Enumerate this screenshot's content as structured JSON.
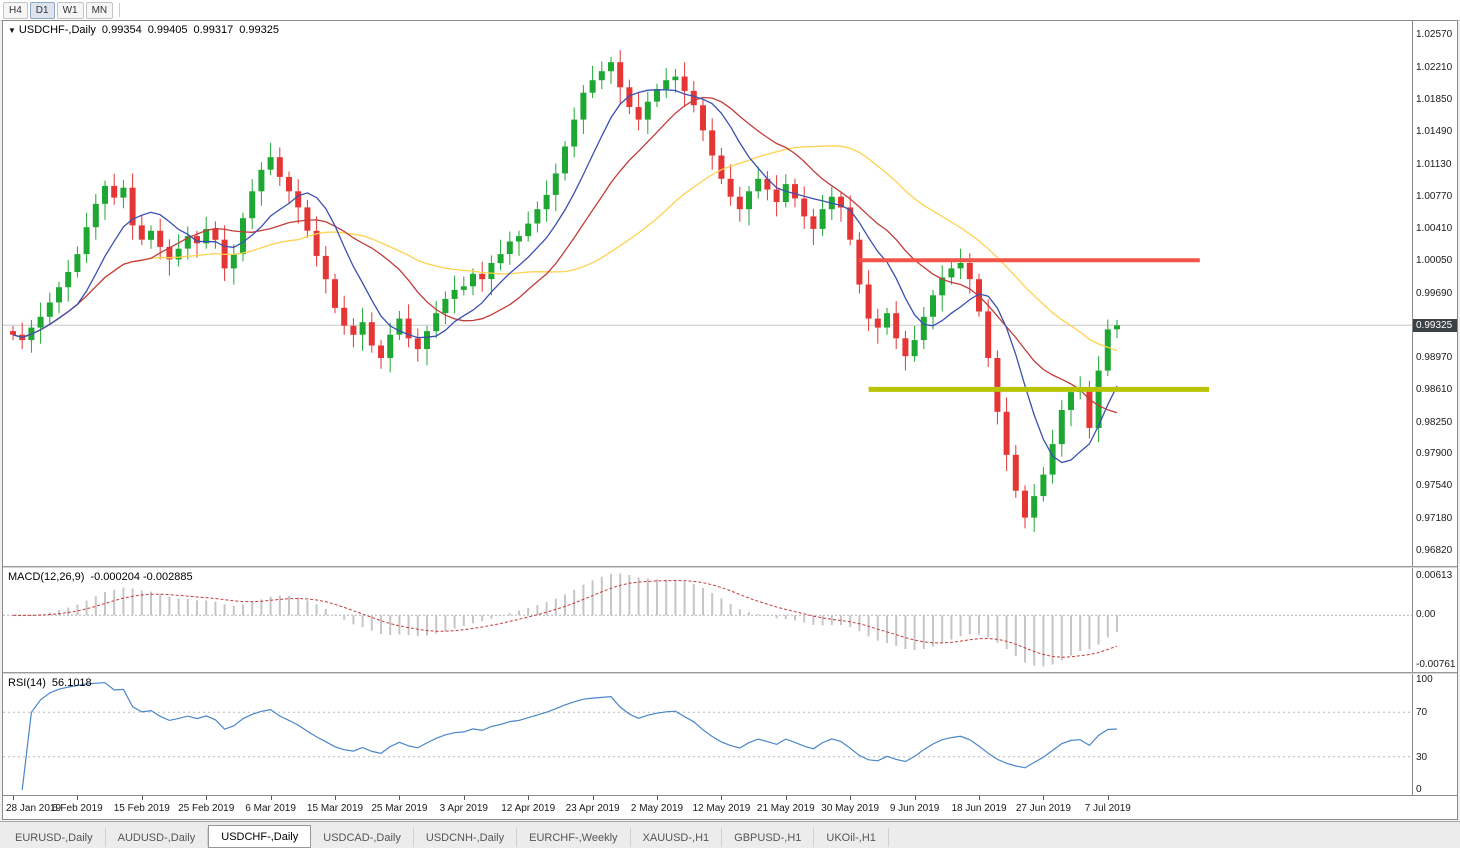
{
  "toolbar": {
    "timeframes": [
      {
        "label": "H4",
        "active": false
      },
      {
        "label": "D1",
        "active": true
      },
      {
        "label": "W1",
        "active": false
      },
      {
        "label": "MN",
        "active": false
      }
    ]
  },
  "header": {
    "arrow": "▼",
    "symbol": "USDCHF-,Daily",
    "open": "0.99354",
    "high": "0.99405",
    "low": "0.99317",
    "close": "0.99325"
  },
  "price_axis": {
    "ticks": [
      "1.02570",
      "1.02210",
      "1.01850",
      "1.01490",
      "1.01130",
      "1.00770",
      "1.00410",
      "1.00050",
      "0.99690",
      "0.98970",
      "0.98610",
      "0.98250",
      "0.97900",
      "0.97540",
      "0.97180",
      "0.96820"
    ],
    "current": "0.99325"
  },
  "macd_panel": {
    "label": "MACD(12,26,9)",
    "values": "-0.000204 -0.002885",
    "axis_top": "0.00613",
    "axis_zero": "0.00",
    "axis_bottom": "-0.00761"
  },
  "rsi_panel": {
    "label": "RSI(14)",
    "value": "56.1018",
    "axis": [
      "100",
      "70",
      "30",
      "0"
    ]
  },
  "tabs": [
    {
      "label": "EURUSD-,Daily",
      "active": false
    },
    {
      "label": "AUDUSD-,Daily",
      "active": false
    },
    {
      "label": "USDCHF-,Daily",
      "active": true
    },
    {
      "label": "USDCAD-,Daily",
      "active": false
    },
    {
      "label": "USDCNH-,Daily",
      "active": false
    },
    {
      "label": "EURCHF-,Weekly",
      "active": false
    },
    {
      "label": "XAUUSD-,H1",
      "active": false
    },
    {
      "label": "GBPUSD-,H1",
      "active": false
    },
    {
      "label": "UKOil-,H1",
      "active": false
    }
  ],
  "colors": {
    "up": "#1fa734",
    "down": "#e53535",
    "ma_fast": "#3a50b0",
    "ma_mid": "#c23b3b",
    "ma_slow": "#ffd24d",
    "resistance": "#f2544a",
    "support": "#b8c400",
    "macd_hist": "#c6c6c6",
    "macd_signal": "#c43c3c",
    "rsi": "#4a86c8",
    "badge_bg": "#3c4146",
    "badge_text": "#ffffff"
  },
  "chart_data": {
    "type": "candlestick",
    "symbol": "USDCHF-",
    "timeframe": "Daily",
    "price_range": [
      0.9664,
      1.0272
    ],
    "current_price": 0.99325,
    "first_open": 0.9926,
    "closes": [
      0.9922,
      0.9916,
      0.993,
      0.9942,
      0.9958,
      0.9975,
      0.9992,
      1.0012,
      1.0042,
      1.0068,
      1.0088,
      1.0075,
      1.0086,
      1.0044,
      1.0028,
      1.0038,
      1.002,
      1.0006,
      1.0018,
      1.0032,
      1.0024,
      1.004,
      1.0028,
      0.9996,
      1.0012,
      1.0052,
      1.0082,
      1.0106,
      1.012,
      1.0098,
      1.0082,
      1.0064,
      1.0038,
      1.001,
      0.9984,
      0.9952,
      0.9932,
      0.9922,
      0.9936,
      0.991,
      0.9896,
      0.9922,
      0.994,
      0.9918,
      0.9906,
      0.9926,
      0.9946,
      0.9962,
      0.9972,
      0.9976,
      0.999,
      0.9984,
      1.0002,
      1.0012,
      1.0026,
      1.0032,
      1.0046,
      1.0062,
      1.0078,
      1.0102,
      1.0132,
      1.0162,
      1.0192,
      1.0206,
      1.0216,
      1.0226,
      1.0198,
      1.0176,
      1.0162,
      1.0182,
      1.0196,
      1.0206,
      1.021,
      1.0194,
      1.0178,
      1.015,
      1.0122,
      1.0096,
      1.0076,
      1.0062,
      1.0082,
      1.0096,
      1.0084,
      1.007,
      1.009,
      1.0074,
      1.0054,
      1.004,
      1.0062,
      1.0076,
      1.0064,
      1.0028,
      0.9978,
      0.994,
      0.993,
      0.9946,
      0.9918,
      0.9898,
      0.9916,
      0.9942,
      0.9966,
      0.9986,
      0.9996,
      1.0002,
      0.9984,
      0.9948,
      0.9896,
      0.9836,
      0.9788,
      0.9748,
      0.9718,
      0.9742,
      0.9766,
      0.98,
      0.9838,
      0.9858,
      0.9862,
      0.9818,
      0.9882,
      0.9928,
      0.99325
    ],
    "x_labels": [
      {
        "label": "28 Jan 2019",
        "bar": 0
      },
      {
        "label": "6 Feb 2019",
        "bar": 7
      },
      {
        "label": "15 Feb 2019",
        "bar": 14
      },
      {
        "label": "25 Feb 2019",
        "bar": 21
      },
      {
        "label": "6 Mar 2019",
        "bar": 28
      },
      {
        "label": "15 Mar 2019",
        "bar": 35
      },
      {
        "label": "25 Mar 2019",
        "bar": 42
      },
      {
        "label": "3 Apr 2019",
        "bar": 49
      },
      {
        "label": "12 Apr 2019",
        "bar": 56
      },
      {
        "label": "23 Apr 2019",
        "bar": 63
      },
      {
        "label": "2 May 2019",
        "bar": 70
      },
      {
        "label": "12 May 2019",
        "bar": 77
      },
      {
        "label": "21 May 2019",
        "bar": 84
      },
      {
        "label": "30 May 2019",
        "bar": 91
      },
      {
        "label": "9 Jun 2019",
        "bar": 98
      },
      {
        "label": "18 Jun 2019",
        "bar": 105
      },
      {
        "label": "27 Jun 2019",
        "bar": 112
      },
      {
        "label": "7 Jul 2019",
        "bar": 119
      }
    ],
    "moving_averages": [
      {
        "period": 32,
        "color_key": "ma_slow"
      },
      {
        "period": 16,
        "color_key": "ma_mid"
      },
      {
        "period": 8,
        "color_key": "ma_fast"
      }
    ],
    "hlines": [
      {
        "price": 1.0005,
        "color_key": "resistance",
        "width": 4,
        "from_bar": 92,
        "to_bar": 129
      },
      {
        "price": 0.9861,
        "color_key": "support",
        "width": 5,
        "from_bar": 93,
        "to_bar": 130
      }
    ],
    "macd": {
      "fast": 12,
      "slow": 26,
      "signal": 9
    },
    "rsi": {
      "period": 14,
      "levels": [
        70,
        30
      ]
    }
  }
}
